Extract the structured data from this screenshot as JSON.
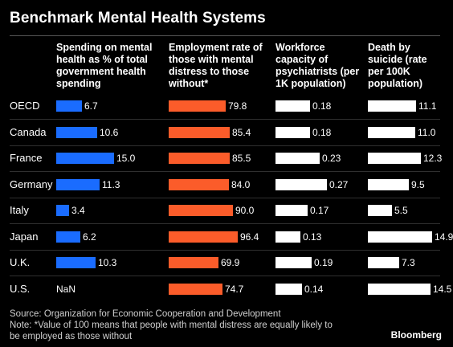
{
  "title": "Benchmark Mental Health Systems",
  "columns": [
    "Spending on mental health as % of total government health spending",
    "Employment rate of those with mental distress to those without*",
    "Workforce capacity of psychiatrists (per 1K population)",
    "Death by suicide (rate per 100K population)"
  ],
  "colors": {
    "spending": "#1a6cff",
    "employment": "#fb5c2a",
    "workforce": "#ffffff",
    "suicide": "#ffffff",
    "background": "#000000"
  },
  "chart_data": {
    "type": "bar",
    "title": "Benchmark Mental Health Systems",
    "categories": [
      "OECD",
      "Canada",
      "France",
      "Germany",
      "Italy",
      "Japan",
      "U.K.",
      "U.S."
    ],
    "series": [
      {
        "name": "Spending on mental health as % of total government health spending",
        "values": [
          6.7,
          10.6,
          15.0,
          11.3,
          3.4,
          6.2,
          10.3,
          null
        ],
        "labels": [
          "6.7",
          "10.6",
          "15.0",
          "11.3",
          "3.4",
          "6.2",
          "10.3",
          "NaN"
        ],
        "max": 15.0
      },
      {
        "name": "Employment rate of those with mental distress to those without*",
        "values": [
          79.8,
          85.4,
          85.5,
          84.0,
          90.0,
          96.4,
          69.9,
          74.7
        ],
        "labels": [
          "79.8",
          "85.4",
          "85.5",
          "84.0",
          "90.0",
          "96.4",
          "69.9",
          "74.7"
        ],
        "max": 96.4
      },
      {
        "name": "Workforce capacity of psychiatrists (per 1K population)",
        "values": [
          0.18,
          0.18,
          0.23,
          0.27,
          0.17,
          0.13,
          0.19,
          0.14
        ],
        "labels": [
          "0.18",
          "0.18",
          "0.23",
          "0.27",
          "0.17",
          "0.13",
          "0.19",
          "0.14"
        ],
        "max": 0.27
      },
      {
        "name": "Death by suicide (rate per 100K population)",
        "values": [
          11.1,
          11.0,
          12.3,
          9.5,
          5.5,
          14.9,
          7.3,
          14.5
        ],
        "labels": [
          "11.1",
          "11.0",
          "12.3",
          "9.5",
          "5.5",
          "14.9",
          "7.3",
          "14.5"
        ],
        "max": 14.9
      }
    ]
  },
  "footer": {
    "source": "Source: Organization for Economic Cooperation and Development",
    "note_line1": "Note: *Value of 100 means that people with mental distress are equally likely to",
    "note_line2": "be employed as those without"
  },
  "brand": "Bloomberg"
}
